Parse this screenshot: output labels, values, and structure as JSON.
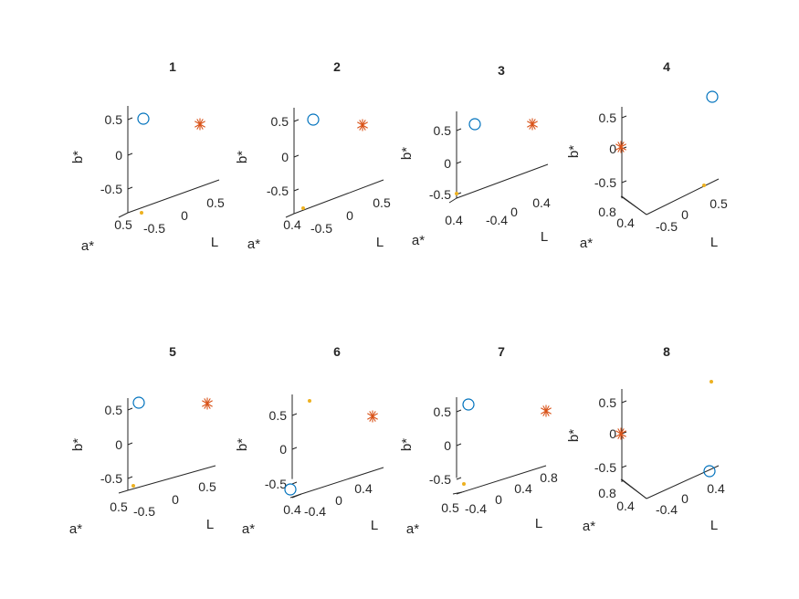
{
  "colors": {
    "circle": "#0072BD",
    "star": "#D95319",
    "dot": "#EDB120",
    "axis": "#262626"
  },
  "chart_data": [
    {
      "type": "scatter3d",
      "title": "1",
      "xlabel": "L",
      "ylabel": "a*",
      "zlabel": "b*",
      "xticks": [
        "0",
        "0.5"
      ],
      "yticks": [
        "0.5",
        "-0.5"
      ],
      "zticks": [
        "0.5",
        "0",
        "-0.5"
      ],
      "series": [
        {
          "marker": "circle",
          "values": [
            [
              -0.6,
              0.6,
              0.6
            ]
          ]
        },
        {
          "marker": "star",
          "values": [
            [
              0.5,
              0.6,
              0.6
            ]
          ]
        },
        {
          "marker": "dot",
          "values": [
            [
              -0.6,
              0.6,
              -0.6
            ]
          ]
        }
      ]
    },
    {
      "type": "scatter3d",
      "title": "2",
      "xlabel": "L",
      "ylabel": "a*",
      "zlabel": "b*",
      "xticks": [
        "0",
        "0.5"
      ],
      "yticks": [
        "0.4",
        "-0.5"
      ],
      "zticks": [
        "0.5",
        "0",
        "-0.5"
      ],
      "series": [
        {
          "marker": "circle",
          "values": [
            [
              -0.5,
              0.5,
              0.6
            ]
          ]
        },
        {
          "marker": "star",
          "values": [
            [
              0.5,
              0.5,
              0.6
            ]
          ]
        },
        {
          "marker": "dot",
          "values": [
            [
              -0.6,
              0.5,
              -0.6
            ]
          ]
        }
      ]
    },
    {
      "type": "scatter3d",
      "title": "3",
      "xlabel": "L",
      "ylabel": "a*",
      "zlabel": "b*",
      "xticks": [
        "-0.4",
        "0",
        "0.4"
      ],
      "yticks": [
        "0.4"
      ],
      "zticks": [
        "0.5",
        "0",
        "-0.5"
      ],
      "series": [
        {
          "marker": "circle",
          "values": [
            [
              -0.5,
              0.5,
              0.6
            ]
          ]
        },
        {
          "marker": "star",
          "values": [
            [
              0.5,
              0.5,
              0.6
            ]
          ]
        },
        {
          "marker": "dot",
          "values": [
            [
              -0.5,
              0.5,
              -0.5
            ]
          ]
        }
      ]
    },
    {
      "type": "scatter3d",
      "title": "4",
      "xlabel": "L",
      "ylabel": "a*",
      "zlabel": "b*",
      "xticks": [
        "-0.5",
        "0",
        "0.5"
      ],
      "yticks": [
        "0.8",
        "0.4"
      ],
      "zticks": [
        "0.5",
        "0",
        "-0.5"
      ],
      "series": [
        {
          "marker": "circle",
          "values": [
            [
              0.5,
              0.9,
              0.9
            ]
          ]
        },
        {
          "marker": "star",
          "values": [
            [
              -0.5,
              0.9,
              0.1
            ]
          ]
        },
        {
          "marker": "dot",
          "values": [
            [
              0.5,
              0.9,
              -0.5
            ]
          ]
        }
      ]
    },
    {
      "type": "scatter3d",
      "title": "5",
      "xlabel": "L",
      "ylabel": "a*",
      "zlabel": "b*",
      "xticks": [
        "-0.5",
        "0",
        "0.5"
      ],
      "yticks": [
        "0.5"
      ],
      "zticks": [
        "0.5",
        "0",
        "-0.5"
      ],
      "series": [
        {
          "marker": "circle",
          "values": [
            [
              -0.6,
              0.6,
              0.6
            ]
          ]
        },
        {
          "marker": "star",
          "values": [
            [
              0.6,
              0.6,
              0.6
            ]
          ]
        },
        {
          "marker": "dot",
          "values": [
            [
              -0.6,
              0.6,
              -0.6
            ]
          ]
        }
      ]
    },
    {
      "type": "scatter3d",
      "title": "6",
      "xlabel": "L",
      "ylabel": "a*",
      "zlabel": "b*",
      "xticks": [
        "-0.4",
        "0",
        "0.4"
      ],
      "yticks": [
        "0.4"
      ],
      "zticks": [
        "0.5",
        "0",
        "-0.5"
      ],
      "series": [
        {
          "marker": "circle",
          "values": [
            [
              -0.5,
              0.5,
              -0.6
            ]
          ]
        },
        {
          "marker": "star",
          "values": [
            [
              0.5,
              0.5,
              0.5
            ]
          ]
        },
        {
          "marker": "dot",
          "values": [
            [
              -0.5,
              0.5,
              0.7
            ]
          ]
        }
      ]
    },
    {
      "type": "scatter3d",
      "title": "7",
      "xlabel": "L",
      "ylabel": "a*",
      "zlabel": "b*",
      "xticks": [
        "-0.4",
        "0",
        "0.4",
        "0.8"
      ],
      "yticks": [
        "0.5"
      ],
      "zticks": [
        "0.5",
        "0",
        "-0.5"
      ],
      "series": [
        {
          "marker": "circle",
          "values": [
            [
              -0.6,
              0.6,
              0.6
            ]
          ]
        },
        {
          "marker": "star",
          "values": [
            [
              0.9,
              0.6,
              0.6
            ]
          ]
        },
        {
          "marker": "dot",
          "values": [
            [
              -0.6,
              0.6,
              -0.6
            ]
          ]
        }
      ]
    },
    {
      "type": "scatter3d",
      "title": "8",
      "xlabel": "L",
      "ylabel": "a*",
      "zlabel": "b*",
      "xticks": [
        "-0.4",
        "0",
        "0.4"
      ],
      "yticks": [
        "0.8",
        "0.4"
      ],
      "zticks": [
        "0.5",
        "0",
        "-0.5"
      ],
      "series": [
        {
          "marker": "circle",
          "values": [
            [
              0.5,
              0.9,
              -0.5
            ]
          ]
        },
        {
          "marker": "star",
          "values": [
            [
              -0.5,
              0.9,
              0.0
            ]
          ]
        },
        {
          "marker": "dot",
          "values": [
            [
              0.5,
              0.9,
              0.8
            ]
          ]
        }
      ]
    }
  ]
}
